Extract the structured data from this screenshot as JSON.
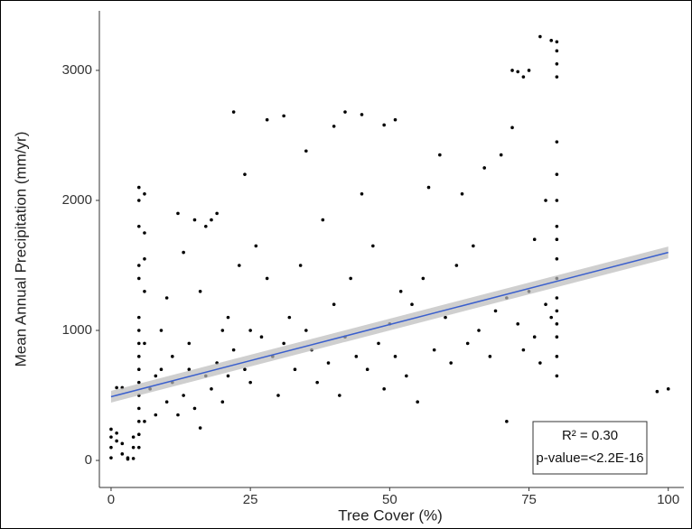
{
  "chart_data": {
    "type": "scatter",
    "x_label": "Tree Cover (%)",
    "y_label": "Mean Annual Precipitation (mm/yr)",
    "xlim": [
      -2.1,
      102.8
    ],
    "ylim": [
      -208,
      3458
    ],
    "xticks": [
      0,
      25,
      50,
      75,
      100
    ],
    "yticks": [
      0,
      1000,
      2000,
      3000
    ],
    "grid": false,
    "color": "#000000",
    "x": [
      0,
      0,
      0,
      0,
      1,
      1,
      1,
      2,
      2,
      2,
      3,
      3,
      4,
      4,
      4,
      5,
      5,
      5,
      5,
      5,
      5,
      5,
      5,
      5,
      5,
      5,
      5,
      5,
      5,
      5,
      5,
      6,
      6,
      6,
      6,
      6,
      6,
      7,
      8,
      8,
      9,
      9,
      10,
      10,
      11,
      11,
      12,
      12,
      13,
      13,
      14,
      14,
      15,
      15,
      16,
      16,
      17,
      17,
      18,
      18,
      19,
      19,
      20,
      20,
      21,
      21,
      22,
      22,
      23,
      24,
      24,
      25,
      25,
      26,
      27,
      28,
      28,
      29,
      30,
      31,
      31,
      32,
      33,
      34,
      35,
      35,
      36,
      37,
      38,
      39,
      40,
      40,
      41,
      42,
      42,
      43,
      44,
      45,
      45,
      46,
      47,
      48,
      49,
      49,
      50,
      51,
      51,
      52,
      53,
      54,
      55,
      56,
      57,
      58,
      59,
      60,
      61,
      62,
      63,
      64,
      65,
      66,
      67,
      68,
      69,
      70,
      71,
      71,
      72,
      72,
      73,
      73,
      74,
      74,
      75,
      75,
      76,
      76,
      77,
      77,
      78,
      78,
      79,
      79,
      80,
      80,
      80,
      80,
      80,
      80,
      80,
      80,
      80,
      80,
      80,
      80,
      80,
      80,
      80,
      80,
      80,
      98,
      100
    ],
    "y": [
      20,
      100,
      180,
      240,
      150,
      210,
      560,
      560,
      50,
      130,
      10,
      20,
      15,
      100,
      180,
      100,
      200,
      300,
      400,
      500,
      600,
      700,
      800,
      900,
      1000,
      1100,
      1400,
      1500,
      1800,
      2000,
      2100,
      2050,
      1750,
      1550,
      1300,
      900,
      300,
      550,
      650,
      350,
      1000,
      700,
      450,
      1250,
      600,
      800,
      1900,
      350,
      500,
      1600,
      700,
      900,
      1850,
      400,
      250,
      1300,
      650,
      1800,
      550,
      1850,
      750,
      1900,
      450,
      1000,
      650,
      1100,
      2680,
      850,
      1500,
      2200,
      700,
      600,
      1000,
      1650,
      950,
      2620,
      1400,
      800,
      500,
      2650,
      900,
      1100,
      700,
      1500,
      2380,
      1000,
      850,
      600,
      1850,
      750,
      1200,
      2570,
      500,
      2680,
      950,
      1400,
      800,
      2050,
      2660,
      700,
      1650,
      900,
      2580,
      550,
      1050,
      2620,
      800,
      1300,
      650,
      1200,
      450,
      1400,
      2100,
      850,
      2350,
      1100,
      750,
      1500,
      2050,
      900,
      1650,
      1000,
      2250,
      800,
      1150,
      2350,
      1250,
      300,
      2560,
      3000,
      1050,
      2990,
      2950,
      850,
      1300,
      3000,
      1700,
      950,
      3260,
      750,
      1200,
      2000,
      1100,
      3230,
      650,
      800,
      950,
      1050,
      1150,
      1250,
      1400,
      1550,
      1700,
      1800,
      2000,
      2200,
      2450,
      2950,
      3050,
      3150,
      3220,
      530,
      550
    ],
    "fit": {
      "x": [
        0,
        100
      ],
      "y": [
        490,
        1600
      ],
      "ci_low": [
        445,
        1555
      ],
      "ci_high": [
        535,
        1645
      ],
      "color": "#3a5fcd",
      "band_color": "#bbbbbb"
    },
    "annotations": [
      "R² = 0.30",
      "p-value=<2.2E-16"
    ]
  }
}
